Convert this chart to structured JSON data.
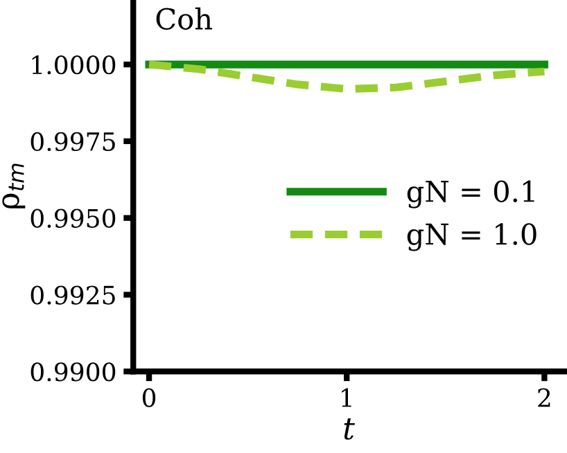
{
  "chart_data": {
    "type": "line",
    "xlabel": "t",
    "ylabel": "ρ$_{tm}$",
    "annotations": [
      "Coh"
    ],
    "x": [
      0,
      0.25,
      0.5,
      0.75,
      1.0,
      1.25,
      1.5,
      1.75,
      2.0
    ],
    "series": [
      {
        "name": "gN = 0.1",
        "color": "#138a13",
        "line_style": "solid",
        "values": [
          1.0,
          1.0,
          1.0,
          1.0,
          1.0,
          1.0,
          1.0,
          1.0,
          1.0
        ]
      },
      {
        "name": "gN = 1.0",
        "color": "#9acd32",
        "line_style": "dashed",
        "values": [
          1.0,
          0.99985,
          0.9996,
          0.99935,
          0.9992,
          0.99925,
          0.99945,
          0.99965,
          0.99977
        ]
      }
    ],
    "xlim": [
      -0.08,
      2.1
    ],
    "ylim": [
      0.99,
      1.0021
    ],
    "xticks": [
      0,
      1,
      2
    ],
    "yticks": [
      {
        "value": 0.99,
        "label": "0.9900"
      },
      {
        "value": 0.9925,
        "label": "0.9925"
      },
      {
        "value": 0.995,
        "label": "0.9950"
      },
      {
        "value": 0.9975,
        "label": "0.9975"
      },
      {
        "value": 1.0,
        "label": "1.0000"
      }
    ],
    "grid": false,
    "legend": "right",
    "marker": "none"
  }
}
